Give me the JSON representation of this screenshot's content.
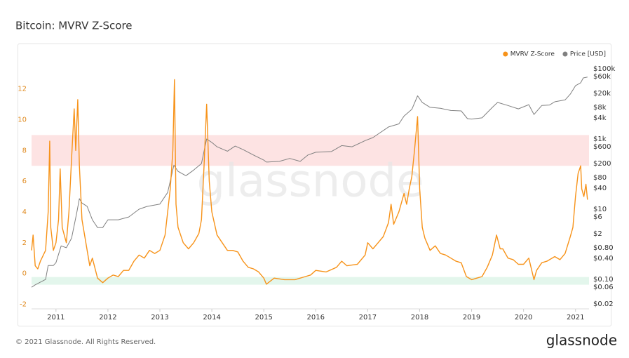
{
  "chart_data": {
    "type": "line",
    "title": "Bitcoin: MVRV Z-Score",
    "watermark": "glassnode",
    "legend": "top-right",
    "xlim": [
      2010.53,
      2021.26
    ],
    "xticks": [
      2011,
      2012,
      2013,
      2014,
      2015,
      2016,
      2017,
      2018,
      2019,
      2020,
      2021
    ],
    "ylim": [
      -2.3,
      13.9
    ],
    "yticks": [
      -2,
      0,
      2,
      4,
      6,
      8,
      10,
      12
    ],
    "y2scale": "log",
    "y2lim": [
      0.0145,
      182000
    ],
    "y2ticks": [
      {
        "value": 100000,
        "label": "$100k"
      },
      {
        "value": 60000,
        "label": "$60k"
      },
      {
        "value": 20000,
        "label": "$20k"
      },
      {
        "value": 8000,
        "label": "$8k"
      },
      {
        "value": 4000,
        "label": "$4k"
      },
      {
        "value": 1000,
        "label": "$1k"
      },
      {
        "value": 600,
        "label": "$600"
      },
      {
        "value": 200,
        "label": "$200"
      },
      {
        "value": 80,
        "label": "$80"
      },
      {
        "value": 40,
        "label": "$40"
      },
      {
        "value": 10,
        "label": "$10"
      },
      {
        "value": 6,
        "label": "$6"
      },
      {
        "value": 2,
        "label": "$2"
      },
      {
        "value": 0.8,
        "label": "$0.80"
      },
      {
        "value": 0.4,
        "label": "$0.40"
      },
      {
        "value": 0.1,
        "label": "$0.10"
      },
      {
        "value": 0.06,
        "label": "$0.06"
      },
      {
        "value": 0.02,
        "label": "$0.02"
      }
    ],
    "bands": [
      {
        "from": 7,
        "to": 9,
        "color": "#fde3e3"
      },
      {
        "from": -0.73,
        "to": -0.23,
        "color": "#e3f6ec"
      }
    ],
    "series": [
      {
        "name": "MVRV Z-Score",
        "color": "#f7931a",
        "x": [
          2010.53,
          2010.56,
          2010.6,
          2010.65,
          2010.7,
          2010.8,
          2010.85,
          2010.88,
          2010.9,
          2010.95,
          2011.0,
          2011.05,
          2011.08,
          2011.12,
          2011.2,
          2011.25,
          2011.3,
          2011.35,
          2011.38,
          2011.42,
          2011.45,
          2011.5,
          2011.6,
          2011.65,
          2011.7,
          2011.8,
          2011.9,
          2012.0,
          2012.1,
          2012.2,
          2012.3,
          2012.4,
          2012.5,
          2012.6,
          2012.7,
          2012.8,
          2012.9,
          2013.0,
          2013.1,
          2013.2,
          2013.25,
          2013.28,
          2013.31,
          2013.35,
          2013.45,
          2013.55,
          2013.65,
          2013.75,
          2013.8,
          2013.85,
          2013.9,
          2013.95,
          2014.0,
          2014.1,
          2014.2,
          2014.3,
          2014.4,
          2014.5,
          2014.6,
          2014.7,
          2014.8,
          2014.9,
          2015.0,
          2015.05,
          2015.2,
          2015.4,
          2015.6,
          2015.8,
          2015.9,
          2016.0,
          2016.2,
          2016.4,
          2016.5,
          2016.6,
          2016.8,
          2016.95,
          2017.0,
          2017.1,
          2017.2,
          2017.3,
          2017.4,
          2017.45,
          2017.5,
          2017.6,
          2017.7,
          2017.75,
          2017.8,
          2017.85,
          2017.9,
          2017.96,
          2018.0,
          2018.05,
          2018.1,
          2018.2,
          2018.3,
          2018.4,
          2018.5,
          2018.6,
          2018.7,
          2018.8,
          2018.9,
          2019.0,
          2019.1,
          2019.2,
          2019.3,
          2019.4,
          2019.48,
          2019.55,
          2019.6,
          2019.7,
          2019.8,
          2019.9,
          2020.0,
          2020.1,
          2020.2,
          2020.25,
          2020.35,
          2020.45,
          2020.6,
          2020.7,
          2020.8,
          2020.9,
          2020.95,
          2021.0,
          2021.05,
          2021.1,
          2021.12,
          2021.16,
          2021.2,
          2021.23
        ],
        "values": [
          1.5,
          2.5,
          0.5,
          0.3,
          0.8,
          1.5,
          4.0,
          8.6,
          3,
          1.5,
          2.0,
          3.5,
          6.8,
          3,
          2,
          4,
          7.5,
          10.7,
          8,
          11.3,
          7,
          3.5,
          1.5,
          0.5,
          1.0,
          -0.3,
          -0.6,
          -0.3,
          -0.1,
          -0.2,
          0.2,
          0.2,
          0.8,
          1.2,
          1.0,
          1.5,
          1.3,
          1.5,
          2.5,
          5.5,
          8,
          12.6,
          4.5,
          3,
          2,
          1.6,
          2,
          2.6,
          3.5,
          7,
          11.0,
          6,
          4.0,
          2.5,
          2,
          1.5,
          1.5,
          1.4,
          0.8,
          0.4,
          0.3,
          0.1,
          -0.3,
          -0.7,
          -0.3,
          -0.4,
          -0.4,
          -0.2,
          -0.1,
          0.2,
          0.1,
          0.4,
          0.8,
          0.5,
          0.6,
          1.2,
          2.0,
          1.6,
          2.0,
          2.4,
          3.3,
          4.5,
          3.2,
          4.0,
          5.2,
          4.5,
          5.5,
          6.3,
          8,
          10.2,
          5.5,
          3,
          2.3,
          1.5,
          1.8,
          1.3,
          1.2,
          1.0,
          0.8,
          0.7,
          -0.2,
          -0.4,
          -0.3,
          -0.2,
          0.4,
          1.2,
          2.5,
          1.6,
          1.6,
          1.0,
          0.9,
          0.6,
          0.6,
          1.0,
          -0.4,
          0.2,
          0.7,
          0.8,
          1.1,
          0.9,
          1.3,
          2.4,
          3.0,
          5.0,
          6.5,
          7.0,
          5.5,
          5.0,
          5.8,
          4.8
        ]
      },
      {
        "name": "Price [USD]",
        "color": "#808080",
        "axis": "y2",
        "x": [
          2010.53,
          2010.6,
          2010.8,
          2010.85,
          2010.95,
          2011.0,
          2011.1,
          2011.2,
          2011.3,
          2011.4,
          2011.45,
          2011.5,
          2011.6,
          2011.7,
          2011.8,
          2011.9,
          2012.0,
          2012.2,
          2012.4,
          2012.6,
          2012.75,
          2013.0,
          2013.15,
          2013.27,
          2013.35,
          2013.5,
          2013.65,
          2013.8,
          2013.9,
          2014.0,
          2014.1,
          2014.3,
          2014.45,
          2014.6,
          2014.8,
          2015.0,
          2015.05,
          2015.3,
          2015.5,
          2015.7,
          2015.85,
          2016.0,
          2016.3,
          2016.5,
          2016.7,
          2016.95,
          2017.1,
          2017.4,
          2017.6,
          2017.7,
          2017.85,
          2017.96,
          2018.05,
          2018.2,
          2018.4,
          2018.6,
          2018.8,
          2018.92,
          2019.0,
          2019.2,
          2019.4,
          2019.5,
          2019.7,
          2019.9,
          2020.1,
          2020.2,
          2020.35,
          2020.5,
          2020.6,
          2020.8,
          2020.9,
          2021.0,
          2021.1,
          2021.15,
          2021.2,
          2021.23
        ],
        "values": [
          0.06,
          0.07,
          0.1,
          0.25,
          0.25,
          0.3,
          0.9,
          0.8,
          1.5,
          8,
          20,
          15,
          12,
          5,
          3,
          3,
          5,
          5,
          6,
          10,
          12,
          14,
          30,
          180,
          120,
          90,
          130,
          200,
          1000,
          800,
          600,
          450,
          630,
          500,
          350,
          250,
          220,
          230,
          280,
          230,
          350,
          420,
          440,
          650,
          600,
          900,
          1100,
          2200,
          2700,
          4500,
          7000,
          17000,
          11000,
          8000,
          7500,
          6500,
          6300,
          3800,
          3700,
          4000,
          8000,
          11000,
          9000,
          7200,
          9500,
          5000,
          9000,
          9300,
          11500,
          13000,
          19000,
          33000,
          40000,
          55000,
          57000,
          58000
        ]
      }
    ]
  },
  "footer": {
    "copyright": "© 2021 Glassnode. All Rights Reserved.",
    "logo": "glassnode"
  }
}
